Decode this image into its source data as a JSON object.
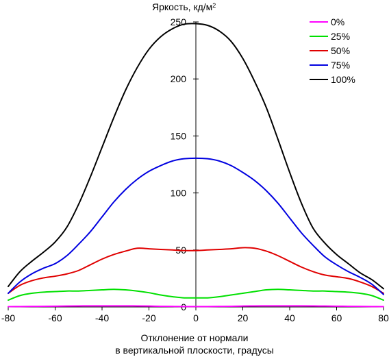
{
  "chart_data": {
    "type": "line",
    "ylabel": "Яркость, кд/м",
    "ylabel_superscript": "2",
    "xlabel_line1": "Отклонение от нормали",
    "xlabel_line2": "в вертикальной плоскости, градусы",
    "xlim": [
      -80,
      80
    ],
    "ylim": [
      0,
      250
    ],
    "x_ticks": [
      -80,
      -60,
      -40,
      -20,
      0,
      20,
      40,
      60,
      80
    ],
    "x_tick_labels": [
      "-80",
      "-60",
      "-40",
      "-20",
      "0",
      "20",
      "40",
      "60",
      "80"
    ],
    "y_ticks": [
      0,
      50,
      100,
      150,
      200,
      250
    ],
    "y_tick_labels": [
      "0",
      "50",
      "100",
      "150",
      "200",
      "250"
    ],
    "grid": false,
    "legend_position": "top-right",
    "x": [
      -80,
      -75,
      -70,
      -65,
      -60,
      -55,
      -50,
      -45,
      -40,
      -35,
      -30,
      -25,
      -20,
      -15,
      -10,
      -5,
      0,
      5,
      10,
      15,
      20,
      25,
      30,
      35,
      40,
      45,
      50,
      55,
      60,
      65,
      70,
      75,
      80
    ],
    "series": [
      {
        "name": "0%",
        "color": "#ff00ff",
        "values": [
          0.3,
          0.4,
          0.5,
          0.6,
          0.7,
          0.8,
          0.9,
          1.0,
          1.0,
          1.0,
          1.0,
          0.9,
          0.8,
          0.6,
          0.5,
          0.4,
          0.4,
          0.4,
          0.5,
          0.6,
          0.8,
          0.9,
          1.0,
          1.0,
          1.0,
          1.0,
          0.9,
          0.8,
          0.7,
          0.6,
          0.5,
          0.4,
          0.3
        ]
      },
      {
        "name": "25%",
        "color": "#00e000",
        "values": [
          6,
          10,
          12,
          13,
          13.5,
          14,
          14,
          14.5,
          15,
          15.5,
          15,
          14,
          12.5,
          10.5,
          9,
          8,
          8,
          8,
          9,
          10.5,
          12,
          13.5,
          15,
          15.5,
          15,
          14.5,
          14,
          14,
          13.5,
          13,
          12,
          10,
          6
        ]
      },
      {
        "name": "50%",
        "color": "#e00000",
        "values": [
          12,
          19,
          23,
          25.5,
          27,
          29,
          32,
          37,
          42,
          46,
          49,
          51.5,
          51,
          50.5,
          50,
          49.5,
          49.5,
          50,
          50.5,
          51,
          52,
          51.5,
          49,
          45,
          40,
          35,
          31,
          28,
          26.5,
          25,
          22,
          18,
          12
        ]
      },
      {
        "name": "75%",
        "color": "#0000e0",
        "values": [
          12,
          22,
          29,
          34,
          38,
          45,
          55,
          66,
          79,
          92,
          103,
          112,
          119,
          124,
          128,
          130,
          130.5,
          130,
          128,
          124,
          118,
          111,
          102,
          91,
          78,
          65,
          54,
          44,
          37,
          31,
          26,
          20,
          11
        ]
      },
      {
        "name": "100%",
        "color": "#000000",
        "values": [
          18,
          31,
          40,
          48,
          57,
          70,
          90,
          114,
          140,
          166,
          190,
          210,
          226,
          237,
          244,
          248,
          248.5,
          247,
          242,
          233,
          218,
          198,
          175,
          147,
          118,
          91,
          69,
          56,
          46,
          38,
          30,
          24,
          16
        ]
      }
    ]
  }
}
